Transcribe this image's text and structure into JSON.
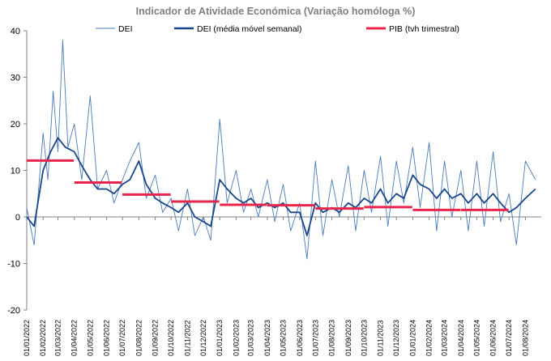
{
  "chart_data": {
    "type": "line",
    "title": "Indicador de Atividade Económica (Variação homóloga %)",
    "ylim": [
      -20,
      40
    ],
    "yticks": [
      -20,
      -10,
      0,
      10,
      20,
      30,
      40
    ],
    "xlim": [
      "2022-01-01",
      "2024-08-31"
    ],
    "xticks": [
      "01/01/2022",
      "01/02/2022",
      "01/03/2022",
      "01/04/2022",
      "01/05/2022",
      "01/06/2022",
      "01/07/2022",
      "01/08/2022",
      "01/09/2022",
      "01/10/2022",
      "01/11/2022",
      "01/12/2022",
      "01/01/2023",
      "01/02/2023",
      "01/03/2023",
      "01/04/2023",
      "01/05/2023",
      "01/06/2023",
      "01/07/2023",
      "01/08/2023",
      "01/09/2023",
      "01/10/2023",
      "01/11/2023",
      "01/12/2023",
      "01/01/2024",
      "01/02/2024",
      "01/03/2024",
      "01/04/2024",
      "01/05/2024",
      "01/06/2024",
      "01/07/2024",
      "01/08/2024"
    ],
    "legend_position": "top",
    "series": [
      {
        "name": "DEI",
        "color": "#4a7ab8",
        "style": "thin-line",
        "x": [
          "2022-01-01",
          "2022-01-15",
          "2022-02-01",
          "2022-02-10",
          "2022-02-20",
          "2022-03-01",
          "2022-03-10",
          "2022-03-20",
          "2022-04-01",
          "2022-04-15",
          "2022-05-01",
          "2022-05-15",
          "2022-06-01",
          "2022-06-15",
          "2022-07-01",
          "2022-07-15",
          "2022-08-01",
          "2022-08-15",
          "2022-09-01",
          "2022-09-15",
          "2022-10-01",
          "2022-10-15",
          "2022-11-01",
          "2022-11-15",
          "2022-12-01",
          "2022-12-15",
          "2023-01-01",
          "2023-01-15",
          "2023-02-01",
          "2023-02-15",
          "2023-03-01",
          "2023-03-15",
          "2023-04-01",
          "2023-04-15",
          "2023-05-01",
          "2023-05-15",
          "2023-06-01",
          "2023-06-15",
          "2023-07-01",
          "2023-07-15",
          "2023-08-01",
          "2023-08-15",
          "2023-09-01",
          "2023-09-15",
          "2023-10-01",
          "2023-10-15",
          "2023-11-01",
          "2023-11-15",
          "2023-12-01",
          "2023-12-15",
          "2024-01-01",
          "2024-01-15",
          "2024-02-01",
          "2024-02-15",
          "2024-03-01",
          "2024-03-15",
          "2024-04-01",
          "2024-04-15",
          "2024-05-01",
          "2024-05-15",
          "2024-06-01",
          "2024-06-15",
          "2024-07-01",
          "2024-07-15",
          "2024-08-01",
          "2024-08-20"
        ],
        "values": [
          2,
          -6,
          18,
          8,
          27,
          14,
          38,
          15,
          20,
          8,
          26,
          6,
          10,
          3,
          8,
          12,
          16,
          4,
          9,
          1,
          4,
          -3,
          6,
          -4,
          0,
          -5,
          21,
          3,
          10,
          1,
          6,
          0,
          8,
          -1,
          7,
          -3,
          3,
          -9,
          12,
          -4,
          8,
          0,
          11,
          -3,
          10,
          1,
          13,
          -2,
          12,
          3,
          15,
          2,
          16,
          -3,
          12,
          0,
          10,
          -3,
          12,
          -2,
          14,
          -1,
          5,
          -6,
          12,
          8
        ]
      },
      {
        "name": "DEI (média móvel semanal)",
        "color": "#17468a",
        "style": "thick-line",
        "x": [
          "2022-01-01",
          "2022-01-15",
          "2022-02-01",
          "2022-02-15",
          "2022-03-01",
          "2022-03-15",
          "2022-04-01",
          "2022-04-15",
          "2022-05-01",
          "2022-05-15",
          "2022-06-01",
          "2022-06-15",
          "2022-07-01",
          "2022-07-15",
          "2022-08-01",
          "2022-08-15",
          "2022-09-01",
          "2022-09-15",
          "2022-10-01",
          "2022-10-15",
          "2022-11-01",
          "2022-11-15",
          "2022-12-01",
          "2022-12-15",
          "2023-01-01",
          "2023-01-15",
          "2023-02-01",
          "2023-02-15",
          "2023-03-01",
          "2023-03-15",
          "2023-04-01",
          "2023-04-15",
          "2023-05-01",
          "2023-05-15",
          "2023-06-01",
          "2023-06-15",
          "2023-07-01",
          "2023-07-15",
          "2023-08-01",
          "2023-08-15",
          "2023-09-01",
          "2023-09-15",
          "2023-10-01",
          "2023-10-15",
          "2023-11-01",
          "2023-11-15",
          "2023-12-01",
          "2023-12-15",
          "2024-01-01",
          "2024-01-15",
          "2024-02-01",
          "2024-02-15",
          "2024-03-01",
          "2024-03-15",
          "2024-04-01",
          "2024-04-15",
          "2024-05-01",
          "2024-05-15",
          "2024-06-01",
          "2024-06-15",
          "2024-07-01",
          "2024-07-15",
          "2024-08-01",
          "2024-08-20"
        ],
        "values": [
          0,
          -2,
          10,
          14,
          17,
          15,
          14,
          11,
          8,
          6,
          6,
          5,
          7,
          8,
          12,
          7,
          4,
          3,
          2,
          1,
          3,
          0,
          -1,
          -2,
          8,
          6,
          4,
          3,
          4,
          2,
          3,
          2,
          3,
          1,
          1,
          -4,
          3,
          1,
          2,
          1,
          3,
          2,
          4,
          3,
          6,
          3,
          5,
          4,
          9,
          7,
          6,
          4,
          6,
          4,
          5,
          3,
          5,
          3,
          5,
          3,
          1,
          2,
          4,
          6
        ]
      },
      {
        "name": "PIB (tvh trimestral)",
        "color": "#e8264d",
        "style": "step",
        "periods": [
          {
            "from": "2022-01-01",
            "to": "2022-03-31",
            "value": 12.1
          },
          {
            "from": "2022-04-01",
            "to": "2022-06-30",
            "value": 7.4
          },
          {
            "from": "2022-07-01",
            "to": "2022-09-30",
            "value": 4.8
          },
          {
            "from": "2022-10-01",
            "to": "2022-12-31",
            "value": 3.3
          },
          {
            "from": "2023-01-01",
            "to": "2023-03-31",
            "value": 2.6
          },
          {
            "from": "2023-04-01",
            "to": "2023-06-30",
            "value": 2.5
          },
          {
            "from": "2023-07-01",
            "to": "2023-09-30",
            "value": 1.8
          },
          {
            "from": "2023-10-01",
            "to": "2023-12-31",
            "value": 2.1
          },
          {
            "from": "2024-01-01",
            "to": "2024-03-31",
            "value": 1.5
          },
          {
            "from": "2024-04-01",
            "to": "2024-06-30",
            "value": 1.5
          }
        ]
      }
    ]
  }
}
